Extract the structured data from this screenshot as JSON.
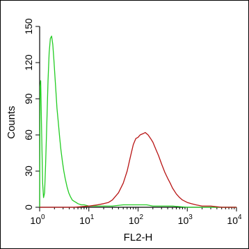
{
  "chart_data": {
    "type": "line",
    "title": "",
    "xlabel": "FL2-H",
    "ylabel": "Counts",
    "x_scale": "log",
    "xlim": [
      1,
      10000
    ],
    "ylim": [
      0,
      150
    ],
    "x_ticks": [
      {
        "value": 1,
        "base": "10",
        "exp": "0"
      },
      {
        "value": 10,
        "base": "10",
        "exp": "1"
      },
      {
        "value": 100,
        "base": "10",
        "exp": "2"
      },
      {
        "value": 1000,
        "base": "10",
        "exp": "3"
      },
      {
        "value": 10000,
        "base": "10",
        "exp": "4"
      }
    ],
    "y_ticks": [
      {
        "value": 0,
        "label": "0"
      },
      {
        "value": 30,
        "label": "30"
      },
      {
        "value": 60,
        "label": "60"
      },
      {
        "value": 90,
        "label": "90"
      },
      {
        "value": 120,
        "label": "120"
      },
      {
        "value": 150,
        "label": "150"
      }
    ],
    "grid": false,
    "legend": "none",
    "series": [
      {
        "color": "#22cc22",
        "x": [
          1.0,
          1.02,
          1.05,
          1.1,
          1.15,
          1.2,
          1.26,
          1.32,
          1.4,
          1.48,
          1.56,
          1.65,
          1.75,
          1.85,
          1.95,
          2.05,
          2.15,
          2.25,
          2.4,
          2.55,
          2.7,
          2.9,
          3.1,
          3.3,
          3.6,
          3.9,
          4.2,
          4.6,
          5.0,
          5.5,
          6.0,
          7.0,
          8.0,
          10.0,
          15.0,
          20.0,
          30.0,
          50.0,
          80.0,
          100.0,
          150.0,
          200.0,
          300.0,
          500.0,
          1000.0,
          3000.0,
          10000.0
        ],
        "y": [
          0,
          100,
          105,
          60,
          20,
          8,
          12,
          35,
          70,
          105,
          128,
          140,
          142,
          135,
          122,
          108,
          95,
          82,
          70,
          58,
          48,
          38,
          30,
          24,
          17,
          12,
          9,
          6,
          5,
          4,
          3,
          2,
          2,
          1,
          1,
          1,
          1,
          2,
          2,
          2,
          2,
          1,
          1,
          1,
          0,
          0,
          0
        ]
      },
      {
        "color": "#b81414",
        "x": [
          1.0,
          5.0,
          10.0,
          15.0,
          20.0,
          25.0,
          30.0,
          40.0,
          50.0,
          60.0,
          70.0,
          80.0,
          90.0,
          100.0,
          110.0,
          125.0,
          140.0,
          160.0,
          180.0,
          200.0,
          230.0,
          260.0,
          300.0,
          350.0,
          400.0,
          450.0,
          500.0,
          600.0,
          700.0,
          800.0,
          1000.0,
          1200.0,
          1500.0,
          2000.0,
          3000.0,
          5000.0,
          10000.0
        ],
        "y": [
          0,
          0,
          1,
          2,
          3,
          4,
          6,
          12,
          20,
          30,
          42,
          52,
          57,
          58,
          60,
          61,
          62,
          60,
          57,
          54,
          48,
          43,
          36,
          29,
          24,
          20,
          16,
          11,
          8,
          6,
          4,
          3,
          2,
          1,
          1,
          0,
          0
        ]
      }
    ]
  }
}
